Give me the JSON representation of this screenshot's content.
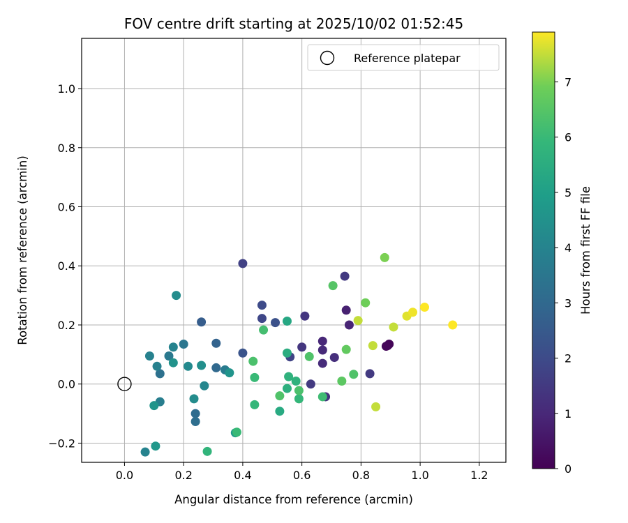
{
  "chart_data": {
    "type": "scatter",
    "title": "FOV centre drift starting at 2025/10/02 01:52:45",
    "xlabel": "Angular distance from reference (arcmin)",
    "ylabel": "Rotation from reference (arcmin)",
    "xlim": [
      -0.145,
      1.29
    ],
    "ylim": [
      -0.265,
      1.17
    ],
    "xticks": [
      0.0,
      0.2,
      0.4,
      0.6,
      0.8,
      1.0,
      1.2
    ],
    "xtick_labels": [
      "0.0",
      "0.2",
      "0.4",
      "0.6",
      "0.8",
      "1.0",
      "1.2"
    ],
    "yticks": [
      -0.2,
      0.0,
      0.2,
      0.4,
      0.6,
      0.8,
      1.0
    ],
    "ytick_labels": [
      "−0.2",
      "0.0",
      "0.2",
      "0.4",
      "0.6",
      "0.8",
      "1.0"
    ],
    "grid": true,
    "legend": {
      "position": "top-right",
      "entries": [
        "Reference platepar"
      ]
    },
    "reference_point": {
      "x": 0.0,
      "y": 0.0
    },
    "colorbar": {
      "label": "Hours from first FF file",
      "range": [
        0,
        7.9
      ],
      "ticks": [
        0,
        1,
        2,
        3,
        4,
        5,
        6,
        7
      ],
      "tick_labels": [
        "0",
        "1",
        "2",
        "3",
        "4",
        "5",
        "6",
        "7"
      ],
      "colormap": "viridis"
    },
    "points": [
      {
        "x": 0.89,
        "y": 0.13,
        "t": 0.0
      },
      {
        "x": 0.895,
        "y": 0.135,
        "t": 0.1
      },
      {
        "x": 0.885,
        "y": 0.128,
        "t": 0.15
      },
      {
        "x": 0.75,
        "y": 0.25,
        "t": 0.8
      },
      {
        "x": 0.76,
        "y": 0.2,
        "t": 0.9
      },
      {
        "x": 0.67,
        "y": 0.145,
        "t": 1.0
      },
      {
        "x": 0.67,
        "y": 0.115,
        "t": 1.05
      },
      {
        "x": 0.67,
        "y": 0.07,
        "t": 1.1
      },
      {
        "x": 0.71,
        "y": 0.09,
        "t": 1.2
      },
      {
        "x": 0.68,
        "y": -0.043,
        "t": 1.3
      },
      {
        "x": 0.61,
        "y": 0.23,
        "t": 1.4
      },
      {
        "x": 0.6,
        "y": 0.125,
        "t": 1.4
      },
      {
        "x": 0.63,
        "y": 0.0,
        "t": 1.5
      },
      {
        "x": 0.745,
        "y": 0.365,
        "t": 1.5
      },
      {
        "x": 0.83,
        "y": 0.035,
        "t": 1.5
      },
      {
        "x": 0.4,
        "y": 0.408,
        "t": 1.7
      },
      {
        "x": 0.56,
        "y": 0.092,
        "t": 1.8
      },
      {
        "x": 0.465,
        "y": 0.222,
        "t": 1.9
      },
      {
        "x": 0.465,
        "y": 0.267,
        "t": 2.0
      },
      {
        "x": 0.51,
        "y": 0.208,
        "t": 2.2
      },
      {
        "x": 0.4,
        "y": 0.105,
        "t": 2.3
      },
      {
        "x": 0.26,
        "y": 0.21,
        "t": 2.6
      },
      {
        "x": 0.31,
        "y": 0.138,
        "t": 2.8
      },
      {
        "x": 0.31,
        "y": 0.055,
        "t": 3.0
      },
      {
        "x": 0.24,
        "y": -0.1,
        "t": 3.1
      },
      {
        "x": 0.24,
        "y": -0.127,
        "t": 3.2
      },
      {
        "x": 0.12,
        "y": 0.035,
        "t": 3.3
      },
      {
        "x": 0.2,
        "y": 0.135,
        "t": 3.5
      },
      {
        "x": 0.15,
        "y": 0.095,
        "t": 3.6
      },
      {
        "x": 0.34,
        "y": 0.048,
        "t": 3.7
      },
      {
        "x": 0.12,
        "y": -0.06,
        "t": 3.8
      },
      {
        "x": 0.085,
        "y": 0.095,
        "t": 3.9
      },
      {
        "x": 0.11,
        "y": 0.06,
        "t": 3.9
      },
      {
        "x": 0.07,
        "y": -0.23,
        "t": 4.0
      },
      {
        "x": 0.165,
        "y": 0.125,
        "t": 4.0
      },
      {
        "x": 0.27,
        "y": -0.006,
        "t": 4.1
      },
      {
        "x": 0.215,
        "y": 0.06,
        "t": 4.2
      },
      {
        "x": 0.175,
        "y": 0.3,
        "t": 4.3
      },
      {
        "x": 0.235,
        "y": -0.05,
        "t": 4.3
      },
      {
        "x": 0.26,
        "y": 0.063,
        "t": 4.4
      },
      {
        "x": 0.165,
        "y": 0.072,
        "t": 4.5
      },
      {
        "x": 0.355,
        "y": 0.038,
        "t": 4.6
      },
      {
        "x": 0.1,
        "y": -0.073,
        "t": 4.6
      },
      {
        "x": 0.105,
        "y": -0.21,
        "t": 4.7
      },
      {
        "x": 0.375,
        "y": -0.165,
        "t": 4.8
      },
      {
        "x": 0.55,
        "y": 0.213,
        "t": 5.3
      },
      {
        "x": 0.525,
        "y": -0.092,
        "t": 5.4
      },
      {
        "x": 0.55,
        "y": 0.105,
        "t": 5.5
      },
      {
        "x": 0.55,
        "y": -0.015,
        "t": 5.6
      },
      {
        "x": 0.555,
        "y": 0.025,
        "t": 5.7
      },
      {
        "x": 0.58,
        "y": 0.01,
        "t": 5.7
      },
      {
        "x": 0.59,
        "y": -0.05,
        "t": 5.9
      },
      {
        "x": 0.28,
        "y": -0.228,
        "t": 5.8
      },
      {
        "x": 0.44,
        "y": -0.07,
        "t": 5.9
      },
      {
        "x": 0.44,
        "y": 0.022,
        "t": 6.0
      },
      {
        "x": 0.38,
        "y": -0.163,
        "t": 6.0
      },
      {
        "x": 0.67,
        "y": -0.043,
        "t": 6.1
      },
      {
        "x": 0.47,
        "y": 0.183,
        "t": 6.2
      },
      {
        "x": 0.435,
        "y": 0.077,
        "t": 6.3
      },
      {
        "x": 0.59,
        "y": -0.022,
        "t": 6.3
      },
      {
        "x": 0.525,
        "y": -0.04,
        "t": 6.4
      },
      {
        "x": 0.625,
        "y": 0.093,
        "t": 6.4
      },
      {
        "x": 0.775,
        "y": 0.033,
        "t": 6.4
      },
      {
        "x": 0.705,
        "y": 0.333,
        "t": 6.5
      },
      {
        "x": 0.735,
        "y": 0.01,
        "t": 6.6
      },
      {
        "x": 0.75,
        "y": 0.117,
        "t": 6.7
      },
      {
        "x": 0.815,
        "y": 0.275,
        "t": 6.9
      },
      {
        "x": 0.88,
        "y": 0.428,
        "t": 7.0
      },
      {
        "x": 0.79,
        "y": 0.215,
        "t": 7.5
      },
      {
        "x": 0.84,
        "y": 0.13,
        "t": 7.5
      },
      {
        "x": 0.85,
        "y": -0.077,
        "t": 7.5
      },
      {
        "x": 0.91,
        "y": 0.193,
        "t": 7.5
      },
      {
        "x": 0.955,
        "y": 0.23,
        "t": 7.7
      },
      {
        "x": 0.975,
        "y": 0.243,
        "t": 7.8
      },
      {
        "x": 1.015,
        "y": 0.26,
        "t": 7.9
      },
      {
        "x": 1.11,
        "y": 0.2,
        "t": 7.9
      }
    ]
  }
}
